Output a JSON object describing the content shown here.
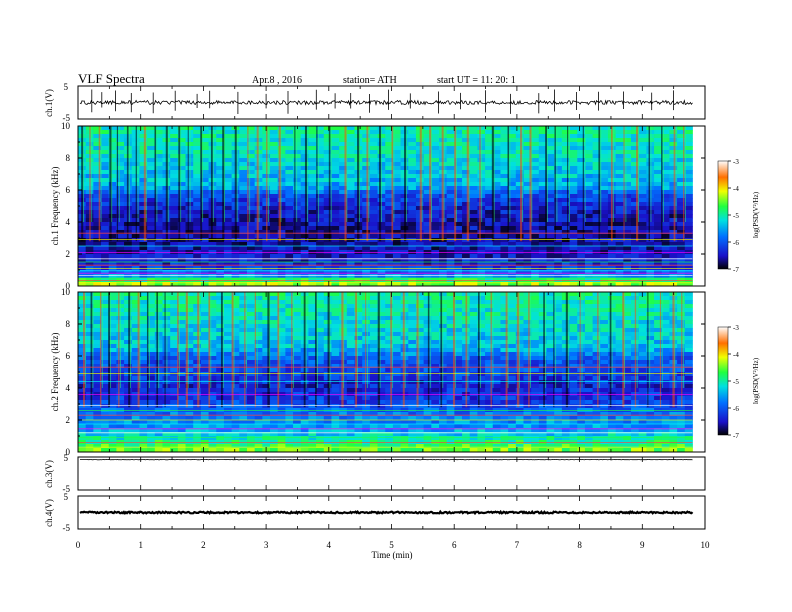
{
  "header": {
    "title": "VLF  Spectra",
    "date": "Apr.8  , 2016",
    "station": "station= ATH",
    "start": "start  UT  =    11: 20: 1"
  },
  "colorbar_ticks": [
    "-3",
    "-4",
    "-5",
    "-6",
    "-7"
  ],
  "colorbar_label": "log(PSD(V²/Hz)",
  "chart_data": [
    {
      "type": "line",
      "ylabel": "ch.1(V)",
      "ylim": [
        -5,
        5
      ],
      "yticks": [
        "5",
        "-5"
      ],
      "xlim": [
        0,
        10
      ],
      "x_end": 9.8,
      "baseline": 0,
      "amplitude": 0.6,
      "spikes": [
        0.22,
        0.38,
        0.6,
        0.85,
        1.2,
        1.55,
        1.9,
        2.1,
        2.55,
        3.0,
        3.35,
        3.8,
        4.1,
        4.35,
        4.65,
        4.95,
        5.3,
        5.75,
        6.1,
        6.5,
        6.9,
        7.35,
        7.6,
        7.95,
        8.3,
        8.7,
        9.15,
        9.5
      ]
    },
    {
      "type": "heatmap",
      "channel": "ch.1",
      "ylabel": "ch.1  Frequency (kHz)",
      "ylim": [
        0,
        10
      ],
      "yticks": [
        "10",
        "8",
        "6",
        "4",
        "2",
        "0"
      ],
      "xlim": [
        0,
        10
      ],
      "x_end": 9.8,
      "colorbar": {
        "label": "log(PSD(V²/Hz)",
        "range": [
          -7,
          -3
        ],
        "ticks": [
          -3,
          -4,
          -5,
          -6,
          -7
        ]
      },
      "profile": [
        {
          "f": 0,
          "v": -4.2
        },
        {
          "f": 0.3,
          "v": -4.6
        },
        {
          "f": 0.6,
          "v": -5.6
        },
        {
          "f": 1.2,
          "v": -6.3
        },
        {
          "f": 2.0,
          "v": -6.5
        },
        {
          "f": 3.0,
          "v": -6.6
        },
        {
          "f": 4.5,
          "v": -6.5
        },
        {
          "f": 5.6,
          "v": -6.1
        },
        {
          "f": 6.2,
          "v": -5.5
        },
        {
          "f": 8.0,
          "v": -5.2
        },
        {
          "f": 10,
          "v": -5.0
        }
      ],
      "lines_khz": [
        0.2,
        0.35,
        0.5,
        0.65,
        0.8,
        0.95,
        1.1,
        1.3,
        1.5,
        1.7,
        2.1,
        2.5,
        2.9,
        3.3
      ],
      "sferics_min": [
        0.05,
        0.18,
        0.33,
        0.5,
        0.62,
        0.78,
        0.92,
        1.05,
        1.22,
        1.4,
        1.6,
        1.75,
        1.95,
        2.12,
        2.3,
        2.5,
        2.7,
        2.85,
        3.0,
        3.2,
        3.45,
        3.62,
        3.8,
        4.0,
        4.25,
        4.45,
        4.6,
        4.8,
        5.0,
        5.2,
        5.45,
        5.6,
        5.8,
        6.0,
        6.2,
        6.4,
        6.6,
        6.85,
        7.05,
        7.2,
        7.45,
        7.6,
        7.8,
        8.05,
        8.3,
        8.5,
        8.7,
        8.9,
        9.1,
        9.3,
        9.5,
        9.65
      ]
    },
    {
      "type": "heatmap",
      "channel": "ch.2",
      "ylabel": "ch.2  Frequency (kHz)",
      "ylim": [
        0,
        10
      ],
      "yticks": [
        "10",
        "8",
        "6",
        "4",
        "2",
        "0"
      ],
      "xlim": [
        0,
        10
      ],
      "x_end": 9.8,
      "colorbar": {
        "label": "log(PSD(V²/Hz)",
        "range": [
          -7,
          -3
        ],
        "ticks": [
          -3,
          -4,
          -5,
          -6,
          -7
        ]
      },
      "profile": [
        {
          "f": 0,
          "v": -4.4
        },
        {
          "f": 0.5,
          "v": -4.8
        },
        {
          "f": 1.0,
          "v": -5.2
        },
        {
          "f": 1.6,
          "v": -5.6
        },
        {
          "f": 2.4,
          "v": -5.8
        },
        {
          "f": 3.2,
          "v": -6.2
        },
        {
          "f": 4.2,
          "v": -6.4
        },
        {
          "f": 5.0,
          "v": -6.1
        },
        {
          "f": 5.8,
          "v": -6.0
        },
        {
          "f": 6.5,
          "v": -5.4
        },
        {
          "f": 8.0,
          "v": -5.2
        },
        {
          "f": 10,
          "v": -5.0
        }
      ],
      "lines_khz": [
        0.3,
        0.6,
        0.9,
        1.2,
        1.45,
        1.75,
        2.0,
        2.3,
        2.6,
        2.9,
        3.6,
        4.4,
        4.9,
        5.3
      ],
      "sferics_min": [
        0.08,
        0.2,
        0.35,
        0.48,
        0.64,
        0.8,
        0.95,
        1.1,
        1.25,
        1.38,
        1.58,
        1.72,
        1.9,
        2.08,
        2.28,
        2.45,
        2.65,
        2.82,
        3.02,
        3.18,
        3.4,
        3.6,
        3.78,
        3.98,
        4.2,
        4.42,
        4.58,
        4.78,
        4.98,
        5.18,
        5.4,
        5.58,
        5.78,
        5.98,
        6.18,
        6.38,
        6.58,
        6.82,
        7.0,
        7.18,
        7.42,
        7.58,
        7.78,
        8.0,
        8.28,
        8.48,
        8.68,
        8.88,
        9.08,
        9.28,
        9.48,
        9.62
      ]
    },
    {
      "type": "line",
      "ylabel": "ch.3(V)",
      "ylim": [
        -5,
        5
      ],
      "yticks": [
        "5",
        "-5"
      ],
      "xlim": [
        0,
        10
      ],
      "x_end": 9.8,
      "baseline": 4.2,
      "amplitude": 0.05,
      "spikes": []
    },
    {
      "type": "line",
      "ylabel": "ch.4(V)",
      "ylim": [
        -5,
        5
      ],
      "yticks": [
        "5",
        "-5"
      ],
      "xlim": [
        0,
        10
      ],
      "x_end": 9.8,
      "baseline": 0,
      "amplitude": 0.25,
      "spikes": []
    }
  ],
  "xaxis": {
    "label": "Time  (min)",
    "ticks": [
      "0",
      "1",
      "2",
      "3",
      "4",
      "5",
      "6",
      "7",
      "8",
      "9",
      "10"
    ],
    "range": [
      0,
      10
    ]
  }
}
